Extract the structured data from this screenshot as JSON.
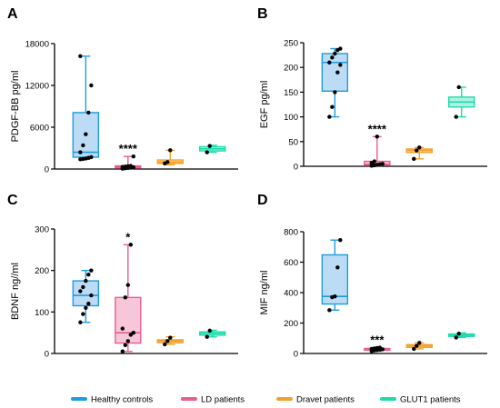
{
  "colors": {
    "healthy": "#1f9bde",
    "healthy_fill": "#bcdcf5",
    "ld": "#ea5c93",
    "ld_fill": "#f7c7d9",
    "dravet": "#f5a02a",
    "dravet_fill": "#fbd9a6",
    "glut1": "#1ddbac",
    "glut1_fill": "#b2f1e2"
  },
  "legend": [
    {
      "name": "Healthy controls",
      "color": "#1f9bde"
    },
    {
      "name": "LD patients",
      "color": "#ea5c93"
    },
    {
      "name": "Dravet patients",
      "color": "#f5a02a"
    },
    {
      "name": "GLUT1 patients",
      "color": "#1ddbac"
    }
  ],
  "chart_data": [
    {
      "type": "box",
      "panel": "A",
      "ylabel": "PDGF-BB pg/ml",
      "ylim": [
        0,
        18000
      ],
      "yticks": [
        0,
        6000,
        12000,
        18000
      ],
      "groups": [
        {
          "name": "Healthy controls",
          "min": 1400,
          "q1": 1700,
          "median": 2400,
          "q3": 8100,
          "max": 16200,
          "points": [
            1400,
            1450,
            1500,
            1600,
            1700,
            2400,
            3400,
            5000,
            8100,
            12000,
            16200
          ]
        },
        {
          "name": "LD patients",
          "min": 50,
          "q1": 150,
          "median": 300,
          "q3": 450,
          "max": 1800,
          "points": [
            50,
            100,
            150,
            200,
            250,
            300,
            350,
            400,
            450,
            1800
          ],
          "significance": "****"
        },
        {
          "name": "Dravet patients",
          "min": 600,
          "q1": 800,
          "median": 1000,
          "q3": 1300,
          "max": 2700,
          "points": [
            800,
            1000,
            2700
          ]
        },
        {
          "name": "GLUT1 patients",
          "min": 2400,
          "q1": 2600,
          "median": 2900,
          "q3": 3200,
          "max": 3400,
          "points": [
            2400,
            3300
          ]
        }
      ]
    },
    {
      "type": "box",
      "panel": "B",
      "ylabel": "EGF pg/ml",
      "ylim": [
        0,
        250
      ],
      "yticks": [
        0,
        50,
        100,
        150,
        200,
        250
      ],
      "groups": [
        {
          "name": "Healthy controls",
          "min": 100,
          "q1": 152,
          "median": 210,
          "q3": 228,
          "max": 238,
          "points": [
            100,
            120,
            150,
            190,
            205,
            210,
            220,
            228,
            235,
            238
          ]
        },
        {
          "name": "LD patients",
          "min": 1,
          "q1": 2,
          "median": 4,
          "q3": 10,
          "max": 60,
          "points": [
            1,
            2,
            3,
            4,
            5,
            7,
            10,
            60
          ],
          "significance": "****"
        },
        {
          "name": "Dravet patients",
          "min": 15,
          "q1": 28,
          "median": 32,
          "q3": 35,
          "max": 38,
          "points": [
            15,
            32,
            38
          ]
        },
        {
          "name": "GLUT1 patients",
          "min": 100,
          "q1": 120,
          "median": 130,
          "q3": 140,
          "max": 160,
          "points": [
            100,
            160
          ]
        }
      ]
    },
    {
      "type": "box",
      "panel": "C",
      "ylabel": "BDNF ng//ml",
      "ylim": [
        0,
        300
      ],
      "yticks": [
        0,
        100,
        200,
        300
      ],
      "groups": [
        {
          "name": "Healthy controls",
          "min": 75,
          "q1": 115,
          "median": 140,
          "q3": 175,
          "max": 200,
          "points": [
            75,
            95,
            110,
            120,
            140,
            150,
            160,
            175,
            190,
            200
          ]
        },
        {
          "name": "LD patients",
          "min": 5,
          "q1": 25,
          "median": 50,
          "q3": 135,
          "max": 262,
          "points": [
            5,
            20,
            30,
            45,
            50,
            60,
            135,
            165,
            262
          ],
          "significance": "*"
        },
        {
          "name": "Dravet patients",
          "min": 22,
          "q1": 26,
          "median": 30,
          "q3": 33,
          "max": 40,
          "points": [
            22,
            30,
            38
          ]
        },
        {
          "name": "GLUT1 patients",
          "min": 40,
          "q1": 44,
          "median": 48,
          "q3": 52,
          "max": 56,
          "points": [
            40,
            55
          ]
        }
      ]
    },
    {
      "type": "box",
      "panel": "D",
      "ylabel": "MIF ng/ml",
      "ylim": [
        0,
        800
      ],
      "yticks": [
        0,
        200,
        400,
        600,
        800
      ],
      "groups": [
        {
          "name": "Healthy controls",
          "min": 285,
          "q1": 325,
          "median": 375,
          "q3": 648,
          "max": 745,
          "points": [
            285,
            370,
            375,
            565,
            745
          ]
        },
        {
          "name": "LD patients",
          "min": 15,
          "q1": 22,
          "median": 27,
          "q3": 33,
          "max": 38,
          "points": [
            15,
            20,
            22,
            25,
            27,
            30,
            33,
            36,
            38
          ],
          "significance": "***"
        },
        {
          "name": "Dravet patients",
          "min": 30,
          "q1": 40,
          "median": 50,
          "q3": 58,
          "max": 70,
          "points": [
            30,
            50,
            70
          ]
        },
        {
          "name": "GLUT1 patients",
          "min": 105,
          "q1": 112,
          "median": 120,
          "q3": 128,
          "max": 135,
          "points": [
            105,
            130
          ]
        }
      ]
    }
  ]
}
